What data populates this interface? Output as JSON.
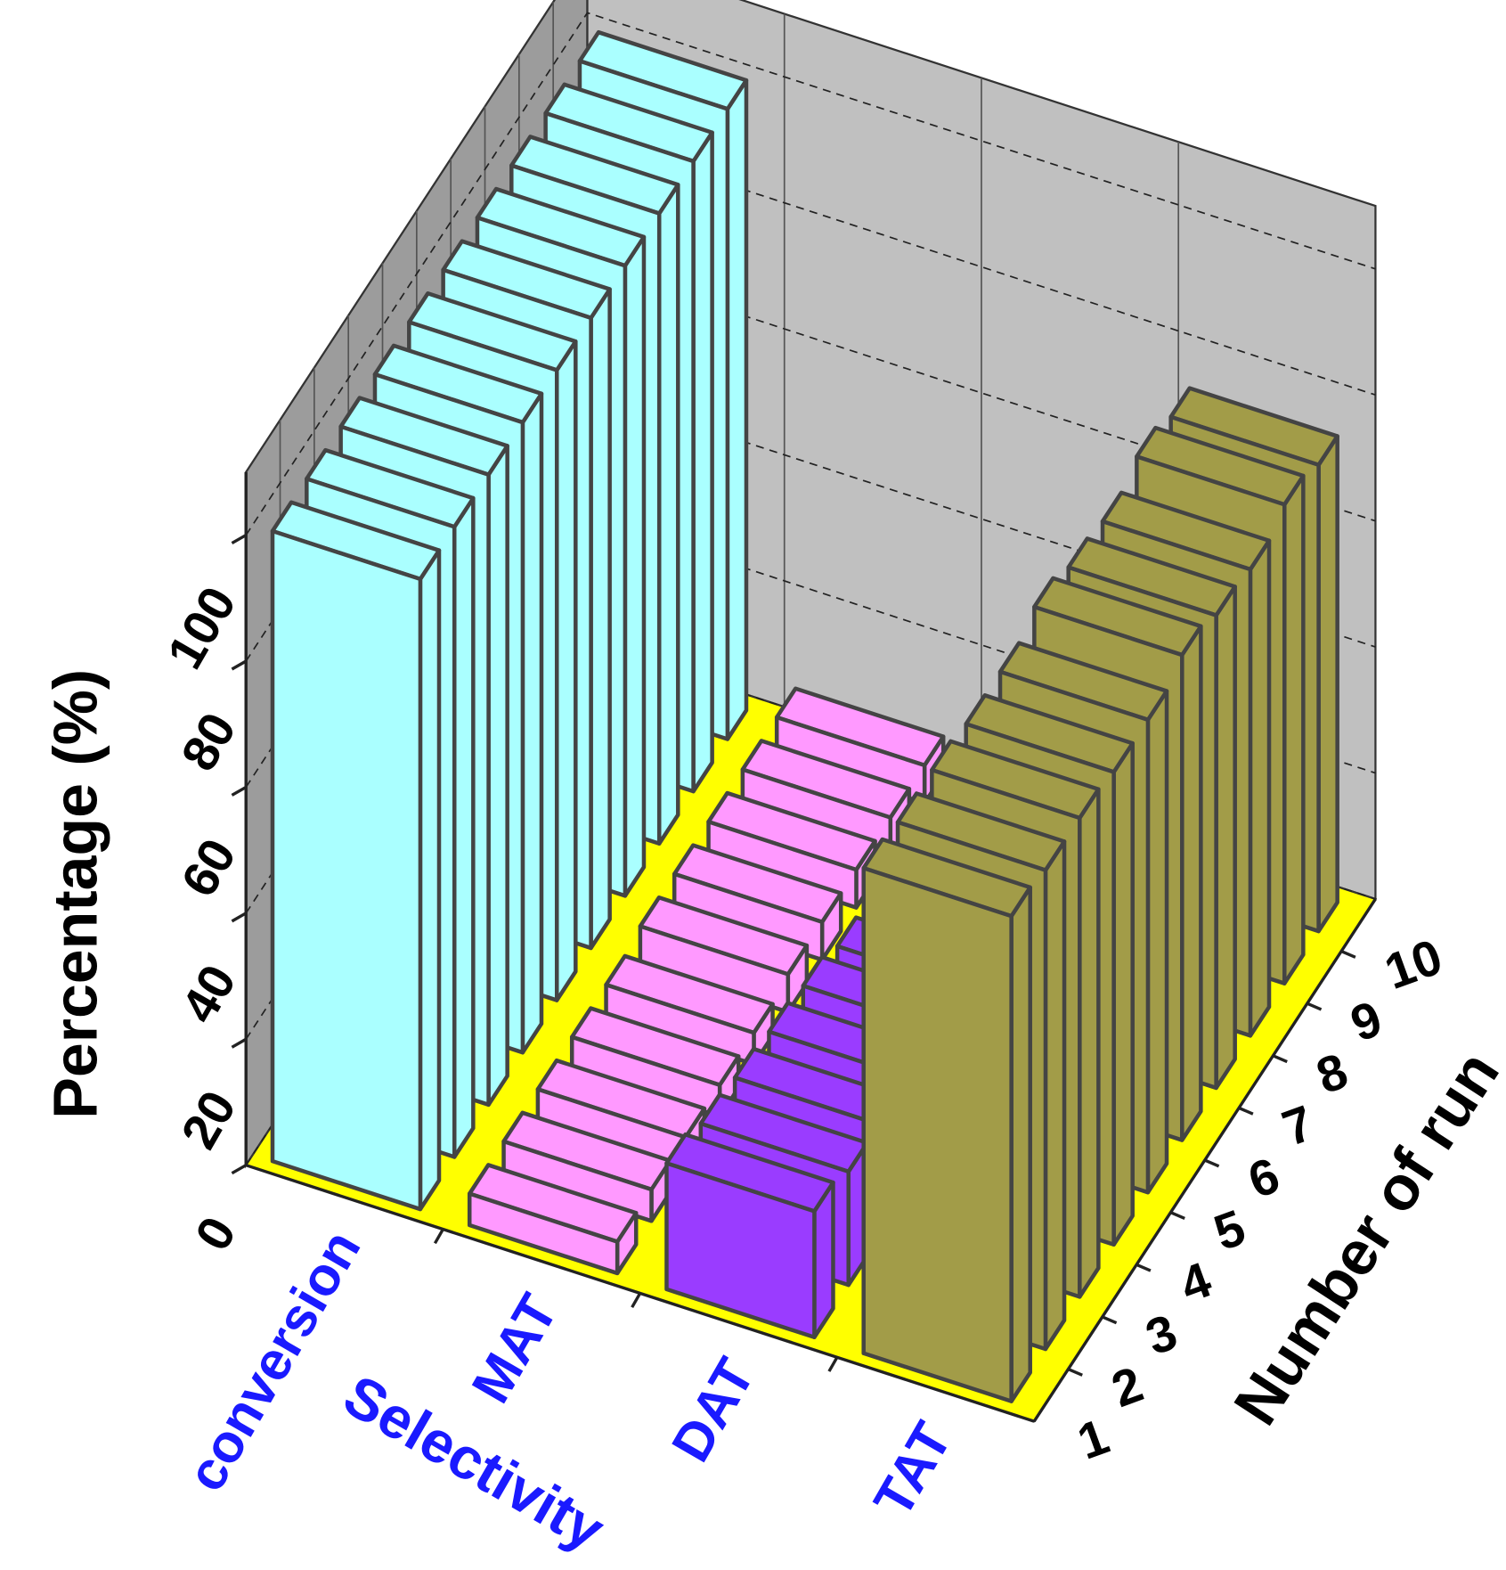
{
  "chart_data": {
    "type": "bar3d",
    "y_title": "Percentage (%)",
    "z_title": "Number of run",
    "x_group_label": "Selectivity",
    "x_categories": [
      "conversion",
      "MAT",
      "DAT",
      "TAT"
    ],
    "z_categories": [
      1,
      2,
      3,
      4,
      5,
      6,
      7,
      8,
      9,
      10
    ],
    "values": [
      [
        100,
        100,
        100,
        100,
        100,
        100,
        100,
        100,
        100,
        100
      ],
      [
        5,
        5,
        5,
        5,
        5,
        6,
        6,
        6,
        6,
        6
      ],
      [
        20,
        18,
        17,
        16,
        15,
        13,
        11,
        9,
        7,
        5
      ],
      [
        77,
        76,
        76,
        75,
        75,
        77,
        75,
        74,
        76,
        74
      ]
    ],
    "colors": [
      "#aaffff",
      "#ff99ff",
      "#9a3cff",
      "#a29c48"
    ],
    "ylim": [
      0,
      110
    ],
    "yticks": [
      0,
      20,
      40,
      60,
      80,
      100
    ],
    "grid": true,
    "floor_color": "#ffff00",
    "wall_color": "#c0c0c0"
  }
}
